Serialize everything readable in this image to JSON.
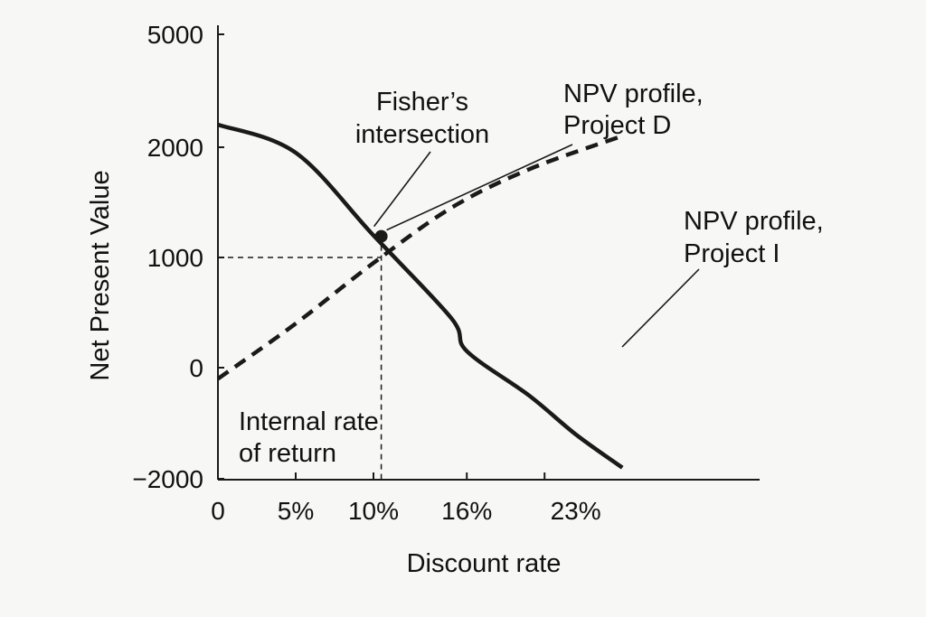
{
  "chart_data": {
    "type": "line",
    "xlabel": "Discount rate",
    "ylabel": "Net Present Value",
    "y_ticks": [
      {
        "value": 5000,
        "label": "5000"
      },
      {
        "value": 2000,
        "label": "2000"
      },
      {
        "value": 1000,
        "label": "1000"
      },
      {
        "value": 0,
        "label": "0"
      },
      {
        "value": -2000,
        "label": "−2000"
      }
    ],
    "x_tick_labels": [
      {
        "x": 0,
        "label": "0"
      },
      {
        "x": 5,
        "label": "5%"
      },
      {
        "x": 10,
        "label": "10%"
      },
      {
        "x": 16,
        "label": "16%"
      },
      {
        "x": 23,
        "label": "23%"
      }
    ],
    "x_minor_ticks": [
      5,
      10,
      16,
      21
    ],
    "series": [
      {
        "style": "solid",
        "x": [
          0,
          5,
          10,
          15,
          16,
          20,
          23,
          26
        ],
        "y": [
          2600,
          1950,
          1200,
          450,
          150,
          -500,
          -1200,
          -1800
        ]
      },
      {
        "style": "dashed",
        "x": [
          0,
          5,
          10,
          15,
          20,
          26
        ],
        "y": [
          -200,
          400,
          950,
          1450,
          1800,
          2300
        ]
      }
    ],
    "intersection": {
      "x": 10.5,
      "y": 1200
    },
    "reference_y": 1000,
    "reference_x": 10.5,
    "annotations": {
      "fisher": [
        "Fisher’s",
        "intersection"
      ],
      "project_d": [
        "NPV profile,",
        "Project D"
      ],
      "project_i": [
        "NPV profile,",
        "Project I"
      ],
      "irr": [
        "Internal rate",
        "of return"
      ]
    },
    "grid": false,
    "colors": {
      "line": "#1a1a1a",
      "background": "#f7f7f6"
    }
  }
}
